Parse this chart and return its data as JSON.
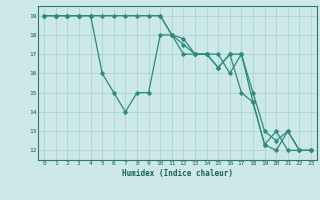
{
  "xlabel": "Humidex (Indice chaleur)",
  "bg_color": "#cce8e8",
  "grid_color": "#aad4d4",
  "line_color": "#2d8b7a",
  "xlim": [
    -0.5,
    23.5
  ],
  "ylim": [
    11.5,
    19.5
  ],
  "xticks": [
    0,
    1,
    2,
    3,
    4,
    5,
    6,
    7,
    8,
    9,
    10,
    11,
    12,
    13,
    14,
    15,
    16,
    17,
    18,
    19,
    20,
    21,
    22,
    23
  ],
  "yticks": [
    12,
    13,
    14,
    15,
    16,
    17,
    18,
    19
  ],
  "line1_x": [
    0,
    1,
    2,
    3,
    4,
    5,
    6,
    7,
    8,
    9,
    10,
    11,
    12,
    13,
    14,
    15,
    16,
    17,
    18,
    19,
    20,
    21,
    22,
    23
  ],
  "line1_y": [
    19,
    19,
    19,
    19,
    19,
    19,
    19,
    19,
    19,
    19,
    19,
    18,
    17.5,
    17,
    17,
    16.3,
    17,
    17,
    14.5,
    12.3,
    13,
    12,
    12,
    12
  ],
  "line2_x": [
    0,
    1,
    2,
    3,
    4,
    10,
    11,
    12,
    13,
    14,
    15,
    16,
    17,
    18,
    19,
    20,
    21,
    22,
    23
  ],
  "line2_y": [
    19,
    19,
    19,
    19,
    19,
    19,
    18,
    17.8,
    17,
    17,
    17,
    16,
    17,
    15,
    13,
    12.5,
    13,
    12,
    12
  ],
  "line3_x": [
    0,
    1,
    2,
    3,
    4,
    5,
    6,
    7,
    8,
    9,
    10,
    11,
    12,
    13,
    14,
    15,
    16,
    17,
    18,
    19,
    20,
    21,
    22,
    23
  ],
  "line3_y": [
    19,
    19,
    19,
    19,
    19,
    16,
    15,
    14,
    15,
    15,
    18,
    18,
    17,
    17,
    17,
    16.3,
    17,
    15,
    14.5,
    12.3,
    12,
    13,
    12,
    12
  ]
}
